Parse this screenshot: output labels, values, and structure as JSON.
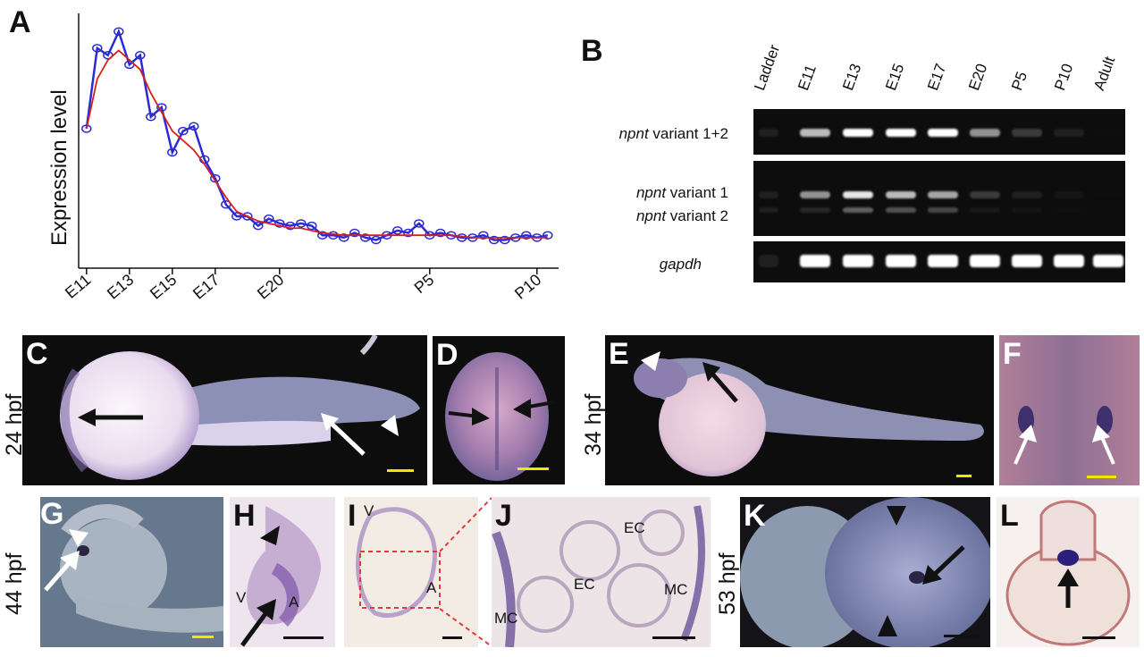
{
  "panels": {
    "A": "A",
    "B": "B",
    "C": "C",
    "D": "D",
    "E": "E",
    "F": "F",
    "G": "G",
    "H": "H",
    "I": "I",
    "J": "J",
    "K": "K",
    "L": "L"
  },
  "stages": {
    "s24": "24 hpf",
    "s34": "34 hpf",
    "s44": "44 hpf",
    "s53": "53 hpf"
  },
  "chart_data": {
    "type": "line",
    "ylabel": "Expression level",
    "xlabel": "",
    "x_ticks": [
      "E11",
      "E13",
      "E15",
      "E17",
      "E20",
      "P5",
      "P10"
    ],
    "x_tick_positions": [
      0,
      2,
      4,
      6,
      9,
      16,
      21
    ],
    "ylim": [
      0,
      1
    ],
    "xlim": [
      -0.2,
      21.8
    ],
    "series": [
      {
        "style": "blue-circles",
        "color": "#2b2bd6",
        "x": [
          0,
          0.5,
          1,
          1.5,
          2,
          2.5,
          3,
          3.5,
          4,
          4.5,
          5,
          5.5,
          6,
          6.5,
          7,
          7.5,
          8,
          8.5,
          9,
          9.5,
          10,
          10.5,
          11,
          11.5,
          12,
          12.5,
          13,
          13.5,
          14,
          14.5,
          15,
          15.5,
          16,
          16.5,
          17,
          17.5,
          18,
          18.5,
          19,
          19.5,
          20,
          20.5,
          21,
          21.5
        ],
        "y": [
          0.57,
          0.91,
          0.88,
          0.98,
          0.84,
          0.88,
          0.62,
          0.66,
          0.47,
          0.56,
          0.58,
          0.44,
          0.36,
          0.25,
          0.2,
          0.2,
          0.16,
          0.19,
          0.17,
          0.16,
          0.17,
          0.16,
          0.12,
          0.12,
          0.11,
          0.13,
          0.11,
          0.1,
          0.12,
          0.14,
          0.13,
          0.17,
          0.12,
          0.13,
          0.12,
          0.11,
          0.11,
          0.12,
          0.1,
          0.1,
          0.11,
          0.12,
          0.11,
          0.12
        ]
      },
      {
        "style": "red-smooth",
        "color": "#d62020",
        "x": [
          0,
          0.5,
          1,
          1.5,
          2,
          2.5,
          3,
          3.5,
          4,
          4.5,
          5,
          5.5,
          6,
          6.5,
          7,
          7.5,
          8,
          8.5,
          9,
          9.5,
          10,
          11,
          12,
          13,
          14,
          15,
          16,
          17,
          18,
          19,
          20,
          21,
          21.5
        ],
        "y": [
          0.57,
          0.78,
          0.86,
          0.9,
          0.86,
          0.82,
          0.72,
          0.64,
          0.56,
          0.52,
          0.48,
          0.42,
          0.35,
          0.28,
          0.22,
          0.2,
          0.18,
          0.17,
          0.16,
          0.15,
          0.15,
          0.13,
          0.12,
          0.12,
          0.12,
          0.12,
          0.12,
          0.12,
          0.11,
          0.11,
          0.11,
          0.11,
          0.11
        ]
      }
    ]
  },
  "gel": {
    "columns": [
      "Ladder",
      "E11",
      "E13",
      "E15",
      "E17",
      "E20",
      "P5",
      "P10",
      "Adult"
    ],
    "rows": [
      {
        "italic": "npnt",
        "rest": " variant 1+2",
        "intensity": [
          0.3,
          0.85,
          1.0,
          1.0,
          1.0,
          0.75,
          0.45,
          0.3,
          0.1
        ]
      },
      {
        "italic": "npnt",
        "rest": " variant 1",
        "intensity": [
          0.3,
          0.75,
          0.95,
          0.85,
          0.8,
          0.45,
          0.3,
          0.2,
          0.1
        ]
      },
      {
        "italic": "npnt",
        "rest": " variant 2",
        "intensity": [
          0.3,
          0.35,
          0.6,
          0.55,
          0.5,
          0.25,
          0.2,
          0.12,
          0.05
        ]
      },
      {
        "italic": "gapdh",
        "rest": "",
        "intensity": [
          0.3,
          1.0,
          1.0,
          1.0,
          1.0,
          1.0,
          1.0,
          1.0,
          1.0
        ]
      }
    ]
  },
  "annotations": {
    "V_h": "V",
    "A_h": "A",
    "V_i": "V",
    "A_i": "A",
    "EC_1": "EC",
    "EC_2": "EC",
    "MC_1": "MC",
    "MC_2": "MC"
  },
  "colors": {
    "scalebar_yellow": "#f2e600",
    "scalebar_black": "#111111",
    "arrow_black": "#111111",
    "arrow_white": "#ffffff",
    "stain_purple": "#5a3f8f",
    "dashed_red": "#e03a3a"
  }
}
